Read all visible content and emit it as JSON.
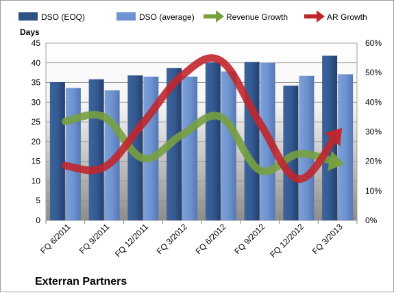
{
  "chart_data": {
    "type": "bar",
    "title": "Exterran Partners",
    "ylabel": "Days",
    "categories": [
      "FQ 6/2011",
      "FQ 9/2011",
      "FQ 12/2011",
      "FQ 3/2012",
      "FQ 6/2012",
      "FQ 9/2012",
      "FQ 12/2012",
      "FQ 3/2013"
    ],
    "y_left": {
      "min": 0,
      "max": 45,
      "step": 5,
      "ticks": [
        "0",
        "5",
        "10",
        "15",
        "20",
        "25",
        "30",
        "35",
        "40",
        "45"
      ]
    },
    "y_right": {
      "min": 0,
      "max": 0.6,
      "step": 0.1,
      "ticks": [
        "0%",
        "10%",
        "20%",
        "30%",
        "40%",
        "50%",
        "60%"
      ]
    },
    "legend_position": "top",
    "grid": true,
    "series": [
      {
        "name": "DSO (EOQ)",
        "kind": "bar",
        "axis": "left",
        "color": "#2f5286",
        "values": [
          35.1,
          35.8,
          36.8,
          38.7,
          40.1,
          40.2,
          34.2,
          41.8
        ]
      },
      {
        "name": "DSO (average)",
        "kind": "bar",
        "axis": "left",
        "color": "#6e93d0",
        "values": [
          33.6,
          33.0,
          36.5,
          36.5,
          37.8,
          40.0,
          36.7,
          37.1
        ]
      },
      {
        "name": "Revenue Growth",
        "kind": "line",
        "axis": "right",
        "color": "#77a03f",
        "values": [
          0.335,
          0.35,
          0.21,
          0.29,
          0.35,
          0.17,
          0.225,
          0.195
        ]
      },
      {
        "name": "AR Growth",
        "kind": "line",
        "axis": "right",
        "color": "#c0272d",
        "values": [
          0.185,
          0.18,
          0.33,
          0.49,
          0.54,
          0.33,
          0.14,
          0.295
        ]
      }
    ]
  }
}
